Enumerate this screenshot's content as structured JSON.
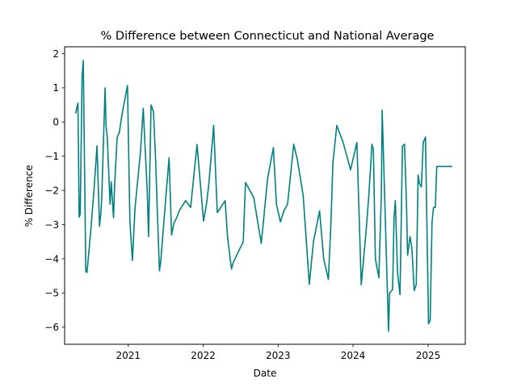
{
  "chart_data": {
    "type": "line",
    "title": "% Difference between Connecticut and National Average",
    "xlabel": "Date",
    "ylabel": "% Difference",
    "grid": false,
    "legend": "none",
    "line_color": "#008080",
    "xlim": [
      "2020-02-26",
      "2025-07-01"
    ],
    "ylim": [
      -6.5,
      2.2
    ],
    "x_ticks": [
      "2021-01-01",
      "2022-01-01",
      "2023-01-01",
      "2024-01-01",
      "2025-01-01"
    ],
    "x_tick_labels": [
      "2021",
      "2022",
      "2023",
      "2024",
      "2025"
    ],
    "y_ticks": [
      -6,
      -5,
      -4,
      -3,
      -2,
      -1,
      0,
      1,
      2
    ],
    "y_tick_labels": [
      "−6",
      "−5",
      "−4",
      "−3",
      "−2",
      "−1",
      "0",
      "1",
      "2"
    ],
    "series": [
      {
        "x": [
          "2020-04-19",
          "2020-05-01",
          "2020-05-07",
          "2020-05-12",
          "2020-05-21",
          "2020-05-27",
          "2020-06-08",
          "2020-06-14",
          "2020-07-02",
          "2020-07-18",
          "2020-08-02",
          "2020-08-14",
          "2020-08-20",
          "2020-08-25",
          "2020-09-10",
          "2020-09-15",
          "2020-09-21",
          "2020-10-04",
          "2020-10-10",
          "2020-10-21",
          "2020-10-27",
          "2020-11-08",
          "2020-11-19",
          "2020-12-01",
          "2020-12-28",
          "2021-01-09",
          "2021-01-21",
          "2021-02-03",
          "2021-03-02",
          "2021-03-15",
          "2021-04-04",
          "2021-04-10",
          "2021-04-22",
          "2021-04-28",
          "2021-05-04",
          "2021-05-15",
          "2021-05-21",
          "2021-06-02",
          "2021-06-08",
          "2021-07-03",
          "2021-07-19",
          "2021-07-31",
          "2021-08-12",
          "2021-08-25",
          "2021-09-06",
          "2021-10-07",
          "2021-11-01",
          "2021-12-02",
          "2022-01-03",
          "2022-01-17",
          "2022-01-29",
          "2022-02-21",
          "2022-03-11",
          "2022-04-18",
          "2022-04-30",
          "2022-05-19",
          "2022-05-28",
          "2022-07-15",
          "2022-07-26",
          "2022-09-04",
          "2022-10-11",
          "2022-11-11",
          "2022-12-09",
          "2022-12-24",
          "2023-01-12",
          "2023-01-29",
          "2023-02-16",
          "2023-03-18",
          "2023-04-05",
          "2023-05-03",
          "2023-06-02",
          "2023-06-22",
          "2023-07-22",
          "2023-08-11",
          "2023-09-03",
          "2023-09-15",
          "2023-09-25",
          "2023-10-14",
          "2023-11-14",
          "2023-12-20",
          "2024-01-20",
          "2024-02-10",
          "2024-03-03",
          "2024-03-16",
          "2024-03-28",
          "2024-04-02",
          "2024-04-09",
          "2024-04-19",
          "2024-05-06",
          "2024-05-18",
          "2024-05-22",
          "2024-06-12",
          "2024-06-22",
          "2024-06-27",
          "2024-07-12",
          "2024-07-19",
          "2024-07-25",
          "2024-08-05",
          "2024-08-17",
          "2024-08-29",
          "2024-09-08",
          "2024-09-18",
          "2024-09-23",
          "2024-10-05",
          "2024-10-14",
          "2024-10-25",
          "2024-11-04",
          "2024-11-13",
          "2024-11-20",
          "2024-11-29",
          "2024-12-08",
          "2024-12-19",
          "2025-01-03",
          "2025-01-11",
          "2025-01-20",
          "2025-01-27",
          "2025-02-05",
          "2025-02-12",
          "2025-02-19",
          "2025-02-25",
          "2025-03-03",
          "2025-03-09",
          "2025-03-17",
          "2025-03-29",
          "2025-04-09",
          "2025-04-17",
          "2025-04-29"
        ],
        "y": [
          0.25,
          0.55,
          -2.78,
          -2.7,
          1.3,
          1.8,
          -4.37,
          -4.4,
          -3.2,
          -2.0,
          -0.7,
          -3.05,
          -2.7,
          -2.2,
          1.0,
          -0.1,
          -0.5,
          -2.4,
          -1.75,
          -2.8,
          -1.8,
          -0.45,
          -0.3,
          0.2,
          1.07,
          -2.9,
          -4.05,
          -2.5,
          -0.85,
          0.4,
          -2.1,
          -3.35,
          0.5,
          0.4,
          0.3,
          -1.2,
          -2.3,
          -4.35,
          -4.1,
          -2.2,
          -1.05,
          -3.3,
          -2.95,
          -2.8,
          -2.6,
          -2.3,
          -2.5,
          -0.66,
          -2.9,
          -2.4,
          -1.8,
          -0.1,
          -2.65,
          -2.3,
          -3.4,
          -4.3,
          -4.1,
          -3.5,
          -1.77,
          -2.2,
          -3.55,
          -1.65,
          -0.75,
          -2.4,
          -2.92,
          -2.6,
          -2.4,
          -0.65,
          -1.1,
          -2.15,
          -4.75,
          -3.5,
          -2.6,
          -4.0,
          -4.6,
          -3.0,
          -1.2,
          -0.1,
          -0.6,
          -1.4,
          -0.6,
          -4.76,
          -3.3,
          -2.3,
          -1.2,
          -0.65,
          -0.8,
          -4.0,
          -4.55,
          -2.1,
          0.35,
          -4.0,
          -6.12,
          -5.0,
          -4.9,
          -2.8,
          -2.3,
          -4.4,
          -5.05,
          -0.7,
          -0.65,
          -2.5,
          -3.9,
          -3.35,
          -3.7,
          -4.93,
          -4.75,
          -1.55,
          -1.8,
          -1.9,
          -0.6,
          -0.44,
          -5.9,
          -5.8,
          -2.95,
          -2.5,
          -2.5,
          -1.3,
          -1.3,
          -1.3,
          -1.3,
          -1.3,
          -1.3,
          -1.3,
          -1.3,
          -1.3,
          -1.3
        ]
      }
    ]
  }
}
